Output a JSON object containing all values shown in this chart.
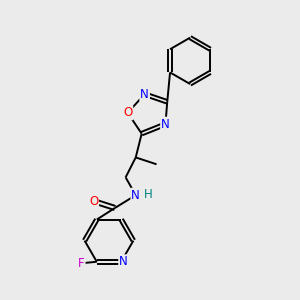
{
  "background_color": "#ebebeb",
  "bond_color": "#000000",
  "atom_colors": {
    "N": "#0000ff",
    "O": "#ff0000",
    "F": "#cc00cc",
    "H": "#008080",
    "C": "#000000"
  },
  "figsize": [
    3.0,
    3.0
  ],
  "dpi": 100
}
